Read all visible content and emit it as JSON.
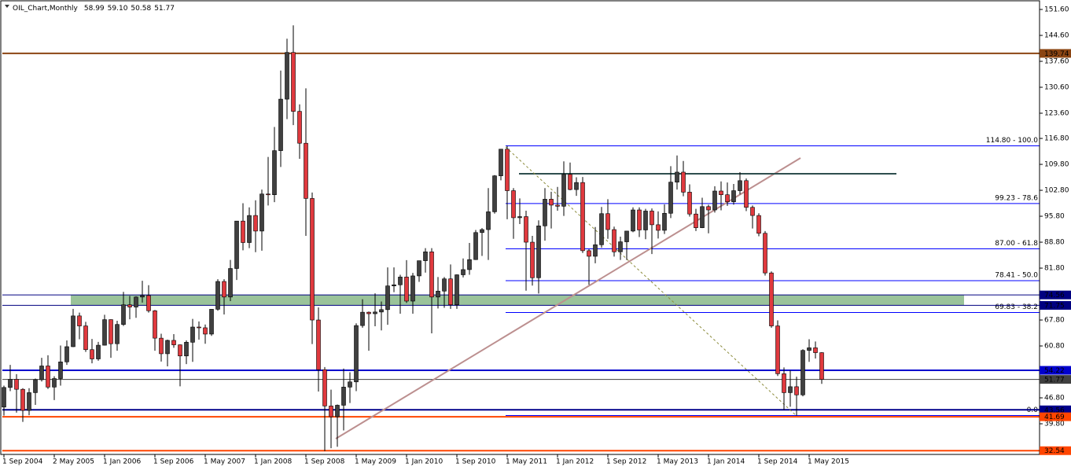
{
  "chart_data": {
    "type": "candlestick",
    "title": "OIL_Chart,Monthly",
    "last_value_labels": [
      "58.99",
      "59.10",
      "50.58",
      "51.77"
    ],
    "categories": [
      "1 Sep 2004",
      null,
      null,
      null,
      null,
      null,
      null,
      null,
      "2 May 2005",
      null,
      null,
      null,
      null,
      null,
      null,
      null,
      "1 Jan 2006",
      null,
      null,
      null,
      null,
      null,
      null,
      null,
      "1 Sep 2006",
      null,
      null,
      null,
      null,
      null,
      null,
      null,
      "1 May 2007",
      null,
      null,
      null,
      null,
      null,
      null,
      null,
      "1 Jan 2008",
      null,
      null,
      null,
      null,
      null,
      null,
      null,
      "1 Sep 2008",
      null,
      null,
      null,
      null,
      null,
      null,
      null,
      "1 May 2009",
      null,
      null,
      null,
      null,
      null,
      null,
      null,
      "1 Jan 2010",
      null,
      null,
      null,
      null,
      null,
      null,
      null,
      "1 Sep 2010",
      null,
      null,
      null,
      null,
      null,
      null,
      null,
      "1 May 2011",
      null,
      null,
      null,
      null,
      null,
      null,
      null,
      "1 Jan 2012",
      null,
      null,
      null,
      null,
      null,
      null,
      null,
      "1 Sep 2012",
      null,
      null,
      null,
      null,
      null,
      null,
      null,
      "1 May 2013",
      null,
      null,
      null,
      null,
      null,
      null,
      null,
      "1 Jan 2014",
      null,
      null,
      null,
      null,
      null,
      null,
      null,
      "1 Sep 2014",
      null,
      null,
      null,
      null,
      null,
      null,
      null,
      "1 May 2015",
      null,
      null
    ],
    "open": [
      44.3,
      49.6,
      51.8,
      49.1,
      43.4,
      48.2,
      51.7,
      55.4,
      49.7,
      52,
      56.5,
      60.6,
      68.9,
      66.2,
      59.8,
      57.3,
      61,
      67.9,
      61.4,
      66.6,
      71.9,
      71.3,
      74,
      74.4,
      70.3,
      62.9,
      58.7,
      62.3,
      61.1,
      58.1,
      61.8,
      65.9,
      65.7,
      64,
      70.7,
      78.2,
      74,
      81.7,
      94.5,
      88.7,
      96,
      91.8,
      101.8,
      101.6,
      113.5,
      127.4,
      140,
      124.1,
      115.5,
      100.6,
      67.8,
      54.4,
      44.6,
      41.7,
      44.8,
      49.7,
      51.1,
      66.3,
      69.9,
      69.5,
      69.96,
      70.6,
      77,
      77.3,
      79.4,
      72.9,
      79.7,
      83.8,
      86.2,
      74,
      75.6,
      78.9,
      71.9,
      80,
      81.4,
      84.1,
      91.4,
      92.2,
      97,
      106.7,
      113.9,
      102.7,
      95.4,
      95.7,
      88.8,
      79.2,
      93.2,
      100.4,
      98.8,
      98.5,
      107.1,
      103,
      104.9,
      86.5,
      85,
      88.1,
      96.5,
      92.2,
      86.2,
      88.9,
      91.8,
      97.5,
      92.1,
      97.2,
      93.5,
      92,
      96.6,
      105,
      107.7,
      102.3,
      96.4,
      92.7,
      98.4,
      97.5,
      102.6,
      101.6,
      99.7,
      102.7,
      105.4,
      98.2,
      96,
      91.2,
      80.5,
      66.2,
      53.3,
      48.2,
      49.8,
      47.6,
      59.6,
      60.3,
      58.99
    ],
    "high": [
      50.1,
      55.7,
      53.2,
      49.4,
      49.4,
      52,
      57.6,
      58.3,
      52.6,
      60.9,
      62.3,
      70.8,
      69.8,
      67.3,
      62.7,
      61.9,
      69.2,
      68,
      67.6,
      75.4,
      74.3,
      74.2,
      78.4,
      77.2,
      70.5,
      64.1,
      62.5,
      64,
      61.2,
      62.3,
      68.1,
      67.4,
      66.6,
      70.7,
      78.8,
      78.8,
      84,
      94.5,
      99.3,
      98.2,
      100.1,
      103,
      111.8,
      119.9,
      135.1,
      143.7,
      147.3,
      126,
      130.3,
      102.2,
      71.2,
      55.1,
      49,
      45,
      54.7,
      53.7,
      66.9,
      73.4,
      70.1,
      75,
      72.8,
      82,
      82,
      80,
      83.95,
      80.5,
      83.8,
      87.2,
      87.2,
      79.4,
      79.4,
      82.8,
      80.1,
      84.4,
      88.6,
      92.1,
      92.6,
      103.4,
      106.9,
      113.9,
      114.8,
      103.4,
      100.6,
      97.3,
      90.5,
      94.7,
      103.4,
      102.4,
      103.7,
      110.6,
      110.3,
      106.3,
      106.4,
      86.9,
      92.9,
      98.3,
      100.4,
      93,
      90.3,
      91.8,
      98.2,
      98.2,
      97.8,
      97.9,
      97.1,
      99,
      109.3,
      112.2,
      110.7,
      104.4,
      97.8,
      100.8,
      98.9,
      103.9,
      105.2,
      104.9,
      104.5,
      107.7,
      106,
      98.7,
      96.6,
      91.8,
      80.9,
      67.7,
      55,
      54.2,
      52.5,
      59.9,
      62.6,
      62,
      59.1
    ],
    "low": [
      42,
      48.6,
      42.8,
      40.3,
      42.1,
      44.9,
      51.2,
      49.2,
      46.2,
      50.1,
      55.7,
      60.5,
      62.6,
      59.2,
      56.1,
      56.8,
      60.9,
      57.6,
      59.5,
      66.2,
      68,
      68.4,
      72.5,
      69.8,
      59.5,
      56.6,
      55.3,
      60.3,
      49.9,
      55.9,
      56.5,
      62.5,
      61.4,
      63.5,
      70.3,
      69.3,
      72.9,
      78.6,
      86.6,
      87.2,
      86.1,
      86.5,
      98.7,
      99.6,
      109.1,
      122,
      120.4,
      111.3,
      90.5,
      61.3,
      48.5,
      32.4,
      33.2,
      33.6,
      38,
      45.4,
      48.6,
      65.7,
      59.5,
      66.1,
      65,
      66.5,
      75.3,
      69.5,
      72.4,
      69.5,
      78.1,
      80.6,
      64.2,
      70.9,
      71.1,
      70.8,
      70.8,
      79.3,
      80,
      84,
      85.1,
      84,
      96.5,
      105.5,
      95,
      89.7,
      93.7,
      75.7,
      77.1,
      74.95,
      89.2,
      92.5,
      97.3,
      95.9,
      102.8,
      101.3,
      85.9,
      77.3,
      83.1,
      87.3,
      89.7,
      84.9,
      84,
      84,
      91.5,
      90.2,
      89.6,
      85.6,
      89.8,
      91,
      95.3,
      103,
      101.2,
      95.7,
      91.8,
      92.6,
      91.2,
      96.8,
      97.4,
      98.6,
      98.9,
      101.7,
      97.2,
      92.5,
      90.4,
      79.8,
      65.7,
      52.7,
      43.6,
      44.4,
      42,
      47.2,
      56.5,
      57.4,
      50.58
    ],
    "close": [
      49.6,
      51.8,
      49.1,
      43.4,
      48.2,
      51.7,
      55.4,
      49.7,
      52,
      56.5,
      60.6,
      68.9,
      66.2,
      59.8,
      57.3,
      61,
      67.9,
      61.4,
      66.6,
      71.9,
      71.3,
      74,
      74.4,
      70.3,
      62.9,
      58.7,
      62.3,
      61.1,
      58.1,
      61.8,
      65.9,
      65.7,
      64,
      70.7,
      78.2,
      74,
      81.7,
      94.5,
      88.7,
      96,
      91.8,
      101.8,
      101.6,
      113.5,
      127.4,
      140,
      124.1,
      115.5,
      100.6,
      67.8,
      54.4,
      44.6,
      41.7,
      44.8,
      49.7,
      51.1,
      66.3,
      69.9,
      69.5,
      69.96,
      70.6,
      77,
      77.3,
      79.4,
      72.9,
      79.7,
      83.8,
      86.2,
      74,
      75.6,
      78.9,
      71.9,
      80,
      81.4,
      84.1,
      91.4,
      92.2,
      97,
      106.7,
      113.9,
      102.7,
      95.4,
      95.7,
      88.8,
      79.2,
      93.2,
      100.4,
      98.8,
      98.5,
      107.1,
      103,
      104.9,
      86.5,
      85,
      88.1,
      96.5,
      92.2,
      86.2,
      88.9,
      91.8,
      97.5,
      92.1,
      97.2,
      93.5,
      92,
      96.6,
      105,
      107.7,
      102.3,
      96.4,
      92.7,
      98.4,
      97.5,
      102.6,
      101.6,
      99.7,
      102.7,
      105.4,
      98.2,
      96,
      91.2,
      80.5,
      66.2,
      53.3,
      48.2,
      49.8,
      47.6,
      59.6,
      60.3,
      58.99,
      51.77
    ],
    "up_color": "#404040",
    "down_color": "#e0393e",
    "ylim": [
      31.53,
      154.15
    ],
    "yticks": [
      {
        "value": 151.6,
        "label": "151.60"
      },
      {
        "value": 144.6,
        "label": "144.60"
      },
      {
        "value": 137.6,
        "label": "137.60"
      },
      {
        "value": 130.6,
        "label": "130.60"
      },
      {
        "value": 123.6,
        "label": "123.60"
      },
      {
        "value": 116.8,
        "label": "116.80"
      },
      {
        "value": 109.8,
        "label": "109.80"
      },
      {
        "value": 102.8,
        "label": "102.80"
      },
      {
        "value": 95.8,
        "label": "95.80"
      },
      {
        "value": 88.8,
        "label": "88.80"
      },
      {
        "value": 81.8,
        "label": "81.80"
      },
      {
        "value": 67.8,
        "label": "67.80"
      },
      {
        "value": 60.8,
        "label": "60.80"
      },
      {
        "value": 46.8,
        "label": "46.80"
      },
      {
        "value": 39.8,
        "label": "39.80"
      }
    ],
    "levels": [
      {
        "value": 139.74,
        "color": "#8b4513"
      },
      {
        "value": 74.56,
        "color": "#000080"
      },
      {
        "value": 71.75,
        "color": "#000080"
      },
      {
        "value": 54.22,
        "color": "#0000cd"
      },
      {
        "value": 51.77,
        "color": "#404040"
      },
      {
        "value": 43.56,
        "color": "#00008b"
      },
      {
        "value": 41.69,
        "color": "#ff4500"
      },
      {
        "value": 32.54,
        "color": "#ff4500"
      }
    ],
    "fib_levels": [
      {
        "value": 114.8,
        "label": "114.80 - 100.0"
      },
      {
        "value": 99.23,
        "label": "99.23 - 78.6"
      },
      {
        "value": 87.0,
        "label": "87.00 - 61.8"
      },
      {
        "value": 78.41,
        "label": "78.41 - 50.0"
      },
      {
        "value": 69.83,
        "label": "69.83 - 38.2"
      },
      {
        "value": 42.03,
        "label": "0.0"
      }
    ],
    "fib_color": "#0000ff",
    "zone_color": "#8fbc8f"
  }
}
